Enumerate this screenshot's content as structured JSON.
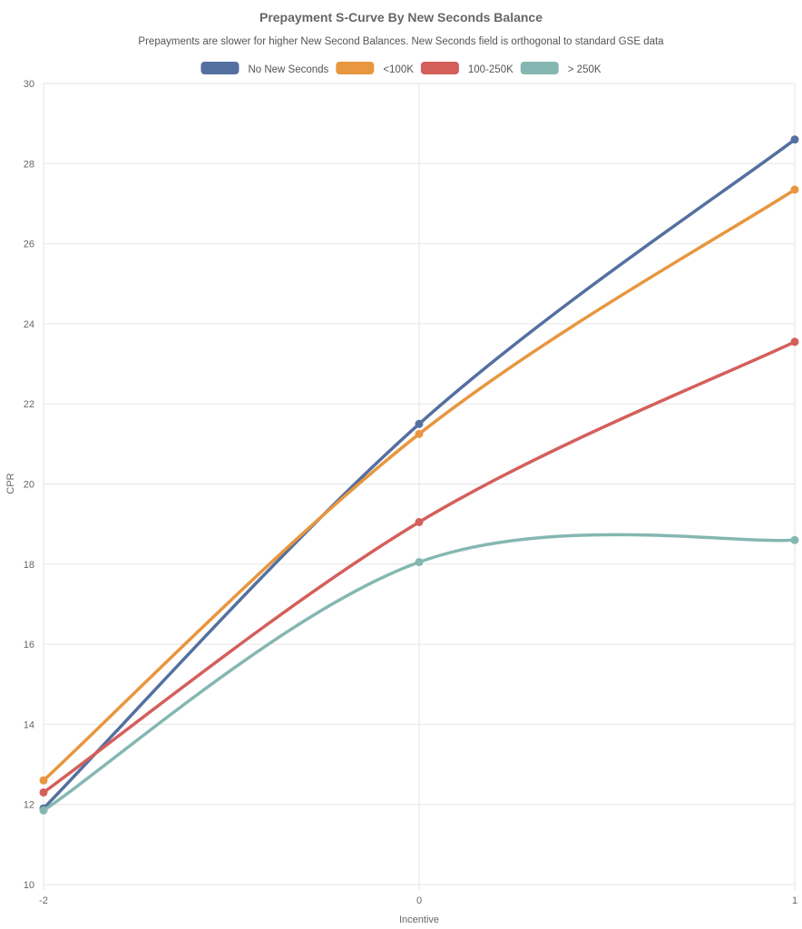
{
  "chart_data": {
    "type": "line",
    "title": "Prepayment S-Curve By New Seconds Balance",
    "subtitle": "Prepayments are slower for higher New Second Balances. New Seconds field is orthogonal to standard GSE data",
    "xlabel": "Incentive",
    "ylabel": "CPR",
    "x": [
      -2,
      0,
      1
    ],
    "x_tick_labels": [
      "-2",
      "0",
      "1"
    ],
    "ylim": [
      10,
      30
    ],
    "y_ticks": [
      10,
      12,
      14,
      16,
      18,
      20,
      22,
      24,
      26,
      28,
      30
    ],
    "grid": true,
    "legend_position": "top",
    "series": [
      {
        "name": "No New Seconds",
        "color": "#5470a0",
        "values": [
          11.9,
          21.5,
          28.6
        ]
      },
      {
        "name": "<100K",
        "color": "#e8963f",
        "values": [
          12.6,
          21.25,
          27.35
        ]
      },
      {
        "name": "100-250K",
        "color": "#d45f5b",
        "values": [
          12.3,
          19.05,
          23.55
        ]
      },
      {
        "name": "> 250K",
        "color": "#85b7b2",
        "values": [
          11.85,
          18.05,
          18.6
        ]
      }
    ]
  }
}
